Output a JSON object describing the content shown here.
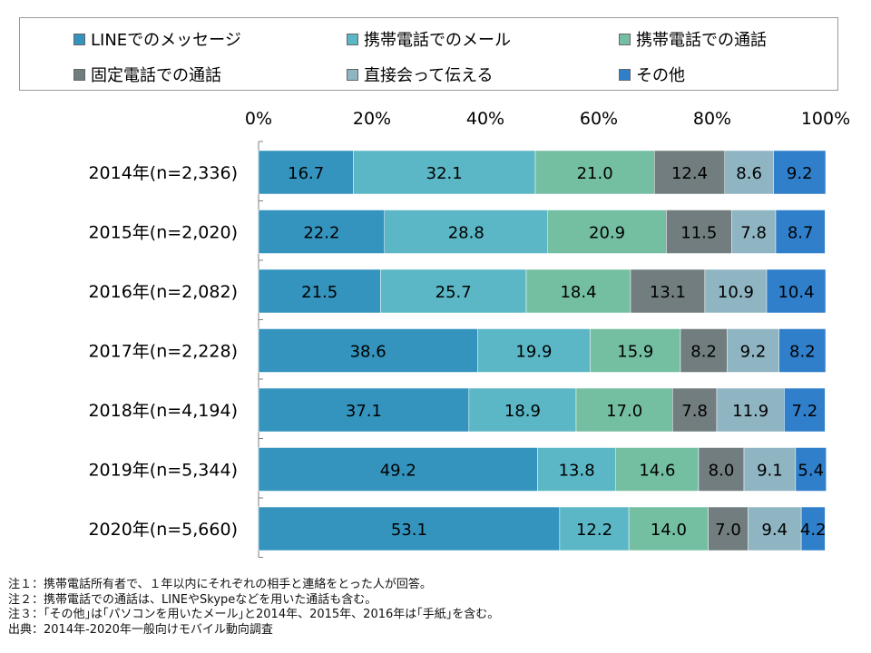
{
  "colors": {
    "line": "#3494BE",
    "mobile_mail": "#5BB7C6",
    "mobile_call": "#74BFA2",
    "landline_call": "#717D7E",
    "face_to_face": "#8FB4C2",
    "other": "#2F7FCB"
  },
  "chart_data": {
    "type": "bar",
    "orientation": "horizontal-stacked-100",
    "categories": [
      "2014年(n=2,336)",
      "2015年(n=2,020)",
      "2016年(n=2,082)",
      "2017年(n=2,228)",
      "2018年(n=4,194)",
      "2019年(n=5,344)",
      "2020年(n=5,660)"
    ],
    "series": [
      {
        "name": "LINEでのメッセージ",
        "color_key": "line",
        "values": [
          16.7,
          22.2,
          21.5,
          38.6,
          37.1,
          49.2,
          53.1
        ],
        "labels": [
          "16.7",
          "22.2",
          "21.5",
          "38.6",
          "37.1",
          "49.2",
          "53.1"
        ]
      },
      {
        "name": "携帯電話でのメール",
        "color_key": "mobile_mail",
        "values": [
          32.1,
          28.8,
          25.7,
          19.9,
          18.9,
          13.8,
          12.2
        ],
        "labels": [
          "32.1",
          "28.8",
          "25.7",
          "19.9",
          "18.9",
          "13.8",
          "12.2"
        ]
      },
      {
        "name": "携帯電話での通話",
        "color_key": "mobile_call",
        "values": [
          21.0,
          20.9,
          18.4,
          15.9,
          17.0,
          14.6,
          14.0
        ],
        "labels": [
          "21.0",
          "20.9",
          "18.4",
          "15.9",
          "17.0",
          "14.6",
          "14.0"
        ]
      },
      {
        "name": "固定電話での通話",
        "color_key": "landline_call",
        "values": [
          12.4,
          11.5,
          13.1,
          8.2,
          7.8,
          8.0,
          7.0
        ],
        "labels": [
          "12.4",
          "11.5",
          "13.1",
          "8.2",
          "7.8",
          "8.0",
          "7.0"
        ]
      },
      {
        "name": "直接会って伝える",
        "color_key": "face_to_face",
        "values": [
          8.6,
          7.8,
          10.9,
          9.2,
          11.9,
          9.1,
          9.4
        ],
        "labels": [
          "8.6",
          "7.8",
          "10.9",
          "9.2",
          "11.9",
          "9.1",
          "9.4"
        ]
      },
      {
        "name": "その他",
        "color_key": "other",
        "values": [
          9.2,
          8.7,
          10.4,
          8.2,
          7.2,
          5.4,
          4.2
        ],
        "labels": [
          "9.2",
          "8.7",
          "10.4",
          "8.2",
          "7.2",
          "5.4",
          "4.2"
        ]
      }
    ],
    "x_ticks": [
      "0%",
      "20%",
      "40%",
      "60%",
      "80%",
      "100%"
    ],
    "xlim": [
      0,
      100
    ],
    "axis_position": "top",
    "grid": false,
    "legend_position": "top"
  },
  "notes": [
    "注１：携帯電話所有者で、１年以内にそれぞれの相手と連絡をとった人が回答。",
    "注２：携帯電話での通話は、LINEやSkypeなどを用いた通話も含む。",
    "注３：｢その他｣は｢パソコンを用いたメール｣と2014年、2015年、2016年は｢手紙｣を含む。",
    "出典：2014年-2020年一般向けモバイル動向調査"
  ]
}
